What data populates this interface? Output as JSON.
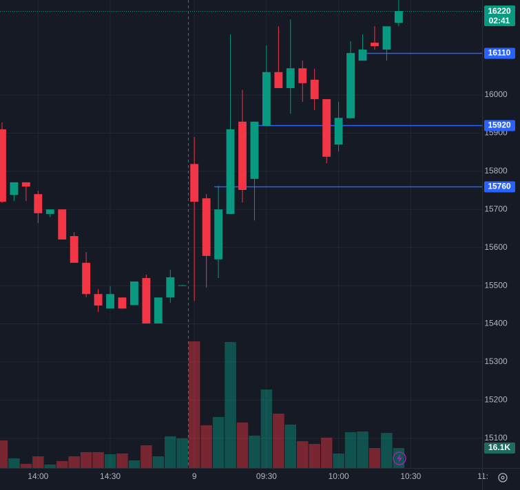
{
  "chart_data": {
    "type": "candlestick",
    "open": [
      15910,
      15738,
      15771,
      15740,
      15688,
      15700,
      15630,
      15560,
      15478,
      15440,
      15469,
      15449,
      15520,
      15401,
      15469,
      15500,
      15819,
      15729,
      15569,
      15688,
      15930,
      15780,
      15919,
      16060,
      16018,
      16070,
      16040,
      15989,
      15870,
      15939,
      16090,
      16137,
      16119,
      16189
    ],
    "high": [
      15928,
      15771,
      15771,
      15749,
      15700,
      15700,
      15640,
      15588,
      15491,
      15498,
      15469,
      15511,
      15529,
      15469,
      15542,
      15502,
      15890,
      15740,
      15762,
      16159,
      16013,
      15930,
      16130,
      16180,
      16198,
      16090,
      16069,
      15989,
      15982,
      16141,
      16159,
      16180,
      16180,
      16249
    ],
    "low": [
      15717,
      15722,
      15722,
      15664,
      15680,
      15621,
      15560,
      15469,
      15431,
      15440,
      15440,
      15449,
      15401,
      15401,
      15455,
      15500,
      15460,
      15495,
      15520,
      15688,
      15718,
      15671,
      15919,
      16018,
      15951,
      15982,
      15960,
      15821,
      15852,
      15939,
      16090,
      16119,
      16090,
      16180
    ],
    "close": [
      15720,
      15771,
      15760,
      15690,
      15700,
      15621,
      15560,
      15478,
      15448,
      15478,
      15440,
      15511,
      15401,
      15469,
      15522,
      15501,
      15720,
      15578,
      15700,
      15910,
      15751,
      15930,
      16060,
      16018,
      16070,
      16031,
      15989,
      15838,
      15940,
      16110,
      16119,
      16128,
      16180,
      16220
    ],
    "volume": [
      22200,
      7800,
      3300,
      9400,
      2800,
      5600,
      9400,
      12800,
      12800,
      11100,
      11700,
      6100,
      18300,
      9400,
      25500,
      23900,
      102100,
      34400,
      41100,
      101600,
      36600,
      26100,
      63300,
      43800,
      35000,
      21600,
      19400,
      24400,
      11700,
      28900,
      29400,
      16100,
      28300,
      16100
    ],
    "volume_label": {
      "value": 16100,
      "label": "16.1K"
    },
    "up_color": "#089981",
    "down_color": "#f23645",
    "ylim": [
      15022,
      16249
    ],
    "yticks": [
      15100,
      15200,
      15300,
      15400,
      15500,
      15600,
      15700,
      15800,
      15900,
      16000
    ],
    "volume_ylim": [
      0,
      377400
    ],
    "xlim": [
      -0.17,
      39.94
    ],
    "xticks": [
      {
        "value": 3,
        "label": "14:00"
      },
      {
        "value": 9,
        "label": "14:30"
      },
      {
        "value": 16,
        "label": "9"
      },
      {
        "value": 22,
        "label": "09:30"
      },
      {
        "value": 28,
        "label": "10:00"
      },
      {
        "value": 34,
        "label": "10:30"
      },
      {
        "value": 40,
        "label": "11:"
      }
    ],
    "price_lines": [
      16110,
      15920,
      15760
    ],
    "price_line_color": "#2962ff",
    "last_price": 16220,
    "countdown": "02:41",
    "grid": true
  }
}
